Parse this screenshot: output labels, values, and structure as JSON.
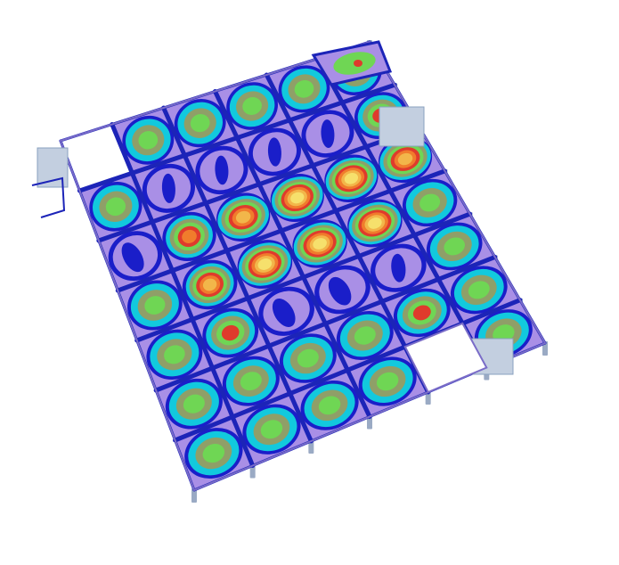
{
  "figure": {
    "description_visible_text": "",
    "legend": null
  },
  "model": {
    "type": "floor-slab",
    "grid": {
      "rows": 7,
      "cols": 6
    },
    "missing_cells": [
      [
        0,
        0
      ],
      [
        6,
        4
      ]
    ],
    "colors": {
      "background": "#ffffff",
      "slab_base": "#a98fe6",
      "grid_beam": "#1c24b8",
      "support": "#c3cfe0",
      "column": "#9aaac4"
    },
    "contour_palette": [
      "#1a1ec9",
      "#12c9dd",
      "#6fb55d",
      "#8f9f68",
      "#6fd654",
      "#df3b2c",
      "#f07c2c",
      "#f2b64a",
      "#f6e06c"
    ],
    "deformation_levels": [
      [
        null,
        2,
        2,
        2,
        2,
        2
      ],
      [
        2,
        0,
        0,
        0,
        0,
        3
      ],
      [
        1,
        4,
        6,
        7,
        8,
        6
      ],
      [
        2,
        5,
        8,
        8,
        8,
        2
      ],
      [
        2,
        3,
        1,
        1,
        0,
        2
      ],
      [
        2,
        2,
        2,
        2,
        3,
        2
      ],
      [
        2,
        2,
        2,
        2,
        null,
        2
      ]
    ]
  }
}
